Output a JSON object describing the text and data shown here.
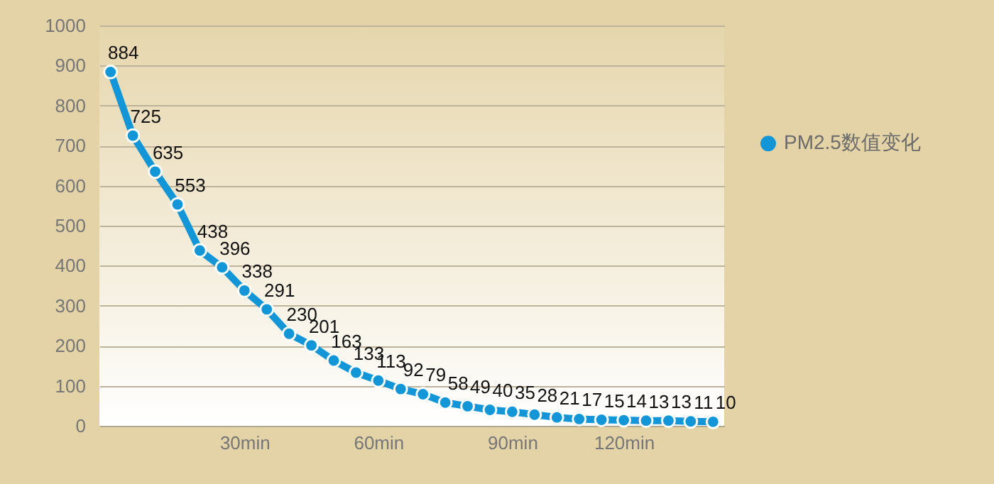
{
  "chart_data": {
    "type": "line",
    "categories": [
      null,
      null,
      null,
      null,
      null,
      null,
      "30min",
      null,
      null,
      null,
      null,
      null,
      "60min",
      null,
      null,
      null,
      null,
      null,
      "90min",
      null,
      null,
      null,
      null,
      "120min",
      null,
      null,
      null,
      null
    ],
    "series": [
      {
        "name": "PM2.5数值变化",
        "color": "#1296d8",
        "values": [
          884,
          725,
          635,
          553,
          438,
          396,
          338,
          291,
          230,
          201,
          163,
          133,
          113,
          92,
          79,
          58,
          49,
          40,
          35,
          28,
          21,
          17,
          15,
          14,
          13,
          13,
          11,
          10
        ]
      }
    ],
    "ylim": [
      0,
      1000
    ],
    "yticks": [
      0,
      100,
      200,
      300,
      400,
      500,
      600,
      700,
      800,
      900,
      1000
    ],
    "grid": "y",
    "legend": "right",
    "marker": "circle",
    "line_style": "solid",
    "data_labels": true
  }
}
